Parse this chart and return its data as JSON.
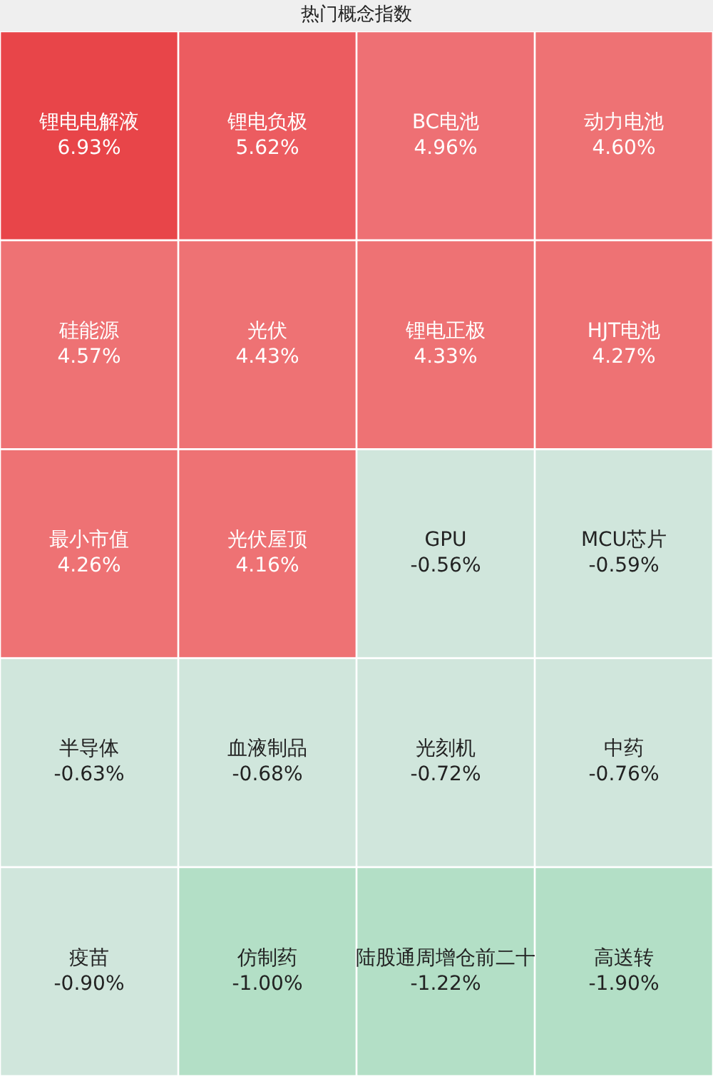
{
  "chart_data": {
    "type": "other",
    "title": "热门概念指数",
    "categories": [
      "锂电电解液",
      "锂电负极",
      "BC电池",
      "动力电池",
      "硅能源",
      "光伏",
      "锂电正极",
      "HJT电池",
      "最小市值",
      "光伏屋顶",
      "GPU",
      "MCU芯片",
      "半导体",
      "血液制品",
      "光刻机",
      "中药",
      "疫苗",
      "仿制药",
      "陆股通周增仓前二十",
      "高送转"
    ],
    "values": [
      6.93,
      5.62,
      4.96,
      4.6,
      4.57,
      4.43,
      4.33,
      4.27,
      4.26,
      4.16,
      -0.56,
      -0.59,
      -0.63,
      -0.68,
      -0.72,
      -0.76,
      -0.9,
      -1.0,
      -1.22,
      -1.9
    ],
    "value_labels": [
      "6.93%",
      "5.62%",
      "4.96%",
      "4.60%",
      "4.57%",
      "4.43%",
      "4.33%",
      "4.27%",
      "4.26%",
      "4.16%",
      "-0.56%",
      "-0.59%",
      "-0.63%",
      "-0.68%",
      "-0.72%",
      "-0.76%",
      "-0.90%",
      "-1.00%",
      "-1.22%",
      "-1.90%"
    ],
    "colors": [
      "#e84549",
      "#ec5c60",
      "#ee7074",
      "#ee7274",
      "#ee7274",
      "#ee7274",
      "#ee7274",
      "#ee7274",
      "#ee7274",
      "#ee7274",
      "#d0e6dc",
      "#d0e6dc",
      "#d0e6dc",
      "#d0e6dc",
      "#d0e6dc",
      "#d0e6dc",
      "#d0e6dc",
      "#b3dfc6",
      "#b3dfc6",
      "#b3dfc6"
    ]
  }
}
